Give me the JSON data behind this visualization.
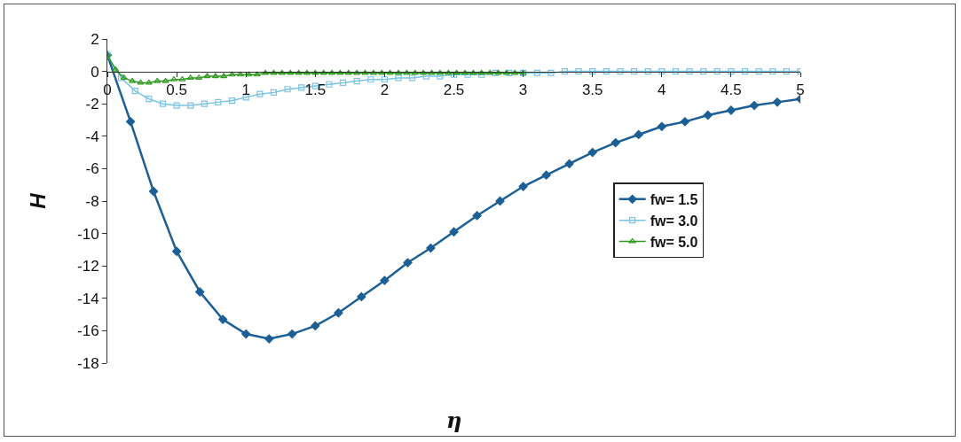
{
  "chart_data": {
    "type": "line",
    "xlabel": "η",
    "ylabel": "H",
    "xlim": [
      0,
      5
    ],
    "xticks": [
      0,
      0.5,
      1,
      1.5,
      2,
      2.5,
      3,
      3.5,
      4,
      4.5,
      5
    ],
    "ylim": [
      -18,
      2
    ],
    "yticks": [
      -18,
      -16,
      -14,
      -12,
      -10,
      -8,
      -6,
      -4,
      -2,
      0,
      2
    ],
    "grid": false,
    "legend": "right",
    "series": [
      {
        "name": "fw= 1.5",
        "color": "#1b5f96",
        "marker": "diamond",
        "x": [
          0,
          0.167,
          0.333,
          0.5,
          0.667,
          0.833,
          1,
          1.167,
          1.333,
          1.5,
          1.667,
          1.833,
          2,
          2.167,
          2.333,
          2.5,
          2.667,
          2.833,
          3,
          3.167,
          3.333,
          3.5,
          3.667,
          3.833,
          4,
          4.167,
          4.333,
          4.5,
          4.667,
          4.833,
          5
        ],
        "values": [
          1,
          -3.1,
          -7.4,
          -11.1,
          -13.6,
          -15.3,
          -16.2,
          -16.5,
          -16.2,
          -15.7,
          -14.9,
          -13.9,
          -12.9,
          -11.8,
          -10.9,
          -9.9,
          -8.9,
          -8.0,
          -7.1,
          -6.4,
          -5.7,
          -5.0,
          -4.4,
          -3.9,
          -3.4,
          -3.1,
          -2.7,
          -2.4,
          -2.1,
          -1.9,
          -1.7
        ]
      },
      {
        "name": "fw= 3.0",
        "color": "#7cc4e6",
        "marker": "square",
        "x": [
          0,
          0.1,
          0.2,
          0.3,
          0.4,
          0.5,
          0.6,
          0.7,
          0.8,
          0.9,
          1,
          1.1,
          1.2,
          1.3,
          1.4,
          1.5,
          1.6,
          1.7,
          1.8,
          1.9,
          2,
          2.1,
          2.2,
          2.3,
          2.4,
          2.5,
          2.6,
          2.7,
          2.8,
          2.9,
          3,
          3.1,
          3.2,
          3.3,
          3.4,
          3.5,
          3.6,
          3.7,
          3.8,
          3.9,
          4,
          4.1,
          4.2,
          4.3,
          4.4,
          4.5,
          4.6,
          4.7,
          4.8,
          4.9,
          5
        ],
        "values": [
          1,
          -0.4,
          -1.2,
          -1.7,
          -2.0,
          -2.1,
          -2.1,
          -2.0,
          -1.9,
          -1.8,
          -1.6,
          -1.4,
          -1.3,
          -1.1,
          -1.0,
          -0.9,
          -0.8,
          -0.7,
          -0.6,
          -0.5,
          -0.5,
          -0.4,
          -0.4,
          -0.3,
          -0.3,
          -0.2,
          -0.2,
          -0.2,
          -0.1,
          -0.1,
          -0.1,
          -0.1,
          -0.1,
          0,
          0,
          0,
          0,
          0,
          0,
          0,
          0,
          0,
          0,
          0,
          0,
          0,
          0,
          0,
          0,
          0,
          0
        ]
      },
      {
        "name": "fw= 5.0",
        "color": "#2f9a1f",
        "marker": "triangle",
        "x": [
          0,
          0.06,
          0.12,
          0.18,
          0.24,
          0.3,
          0.36,
          0.42,
          0.48,
          0.54,
          0.6,
          0.66,
          0.72,
          0.78,
          0.84,
          0.9,
          0.96,
          1.02,
          1.08,
          1.14,
          1.2,
          1.26,
          1.32,
          1.38,
          1.44,
          1.5,
          1.56,
          1.62,
          1.68,
          1.74,
          1.8,
          1.86,
          1.92,
          1.98,
          2.04,
          2.1,
          2.16,
          2.22,
          2.28,
          2.34,
          2.4,
          2.46,
          2.52,
          2.58,
          2.64,
          2.7,
          2.76,
          2.82,
          2.88,
          2.94,
          3
        ],
        "values": [
          1,
          0.1,
          -0.4,
          -0.6,
          -0.7,
          -0.7,
          -0.6,
          -0.6,
          -0.5,
          -0.5,
          -0.4,
          -0.4,
          -0.3,
          -0.3,
          -0.3,
          -0.2,
          -0.2,
          -0.2,
          -0.2,
          -0.1,
          -0.1,
          -0.1,
          -0.1,
          -0.1,
          -0.1,
          -0.1,
          -0.1,
          -0.1,
          -0.1,
          -0.1,
          -0.1,
          -0.1,
          -0.1,
          -0.1,
          -0.1,
          -0.1,
          -0.1,
          -0.1,
          -0.1,
          -0.1,
          -0.1,
          -0.1,
          -0.1,
          -0.1,
          -0.1,
          -0.1,
          -0.1,
          -0.1,
          -0.1,
          -0.1,
          -0.1
        ]
      }
    ]
  }
}
